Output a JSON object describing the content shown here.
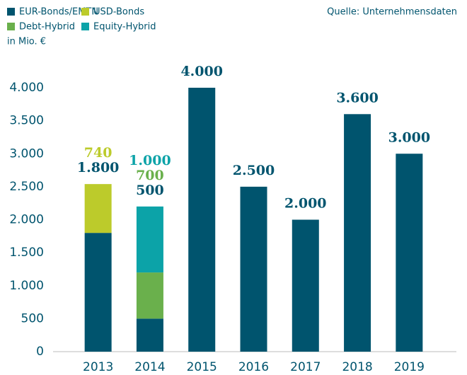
{
  "chart_data": {
    "type": "stacked_bar",
    "source": "Quelle: Unternehmensdaten",
    "y_label": "in Mio. €",
    "categories": [
      "2013",
      "2014",
      "2015",
      "2016",
      "2017",
      "2018",
      "2019"
    ],
    "series": [
      {
        "name": "EUR-Bonds/EMTN",
        "color": "#00546e",
        "values": [
          1800,
          500,
          4000,
          2500,
          2000,
          3600,
          3000
        ],
        "value_labels": [
          "1.800",
          "500",
          "4.000",
          "2.500",
          "2.000",
          "3.600",
          "3.000"
        ]
      },
      {
        "name": "USD-Bonds",
        "color": "#bccb2b",
        "values": [
          740,
          null,
          null,
          null,
          null,
          null,
          null
        ],
        "value_labels": [
          "740",
          null,
          null,
          null,
          null,
          null,
          null
        ]
      },
      {
        "name": "Debt-Hybrid",
        "color": "#6ab04c",
        "values": [
          null,
          700,
          null,
          null,
          null,
          null,
          null
        ],
        "value_labels": [
          null,
          "700",
          null,
          null,
          null,
          null,
          null
        ]
      },
      {
        "name": "Equity-Hybrid",
        "color": "#0ca3a8",
        "values": [
          null,
          1000,
          null,
          null,
          null,
          null,
          null
        ],
        "value_labels": [
          null,
          "1.000",
          null,
          null,
          null,
          null,
          null
        ]
      }
    ],
    "ylim": [
      0,
      4000
    ],
    "yticks": [
      0,
      500,
      {
        "value": 1000,
        "label": "1.000"
      },
      {
        "value": 1500,
        "label": "1.500"
      },
      {
        "value": 2000,
        "label": "2.000"
      },
      {
        "value": 2500,
        "label": "2.500"
      },
      {
        "value": 3000,
        "label": "3.000"
      },
      {
        "value": 3500,
        "label": "3.500"
      },
      {
        "value": 4000,
        "label": "4.000"
      }
    ],
    "grid": false,
    "legend": "top-left"
  }
}
